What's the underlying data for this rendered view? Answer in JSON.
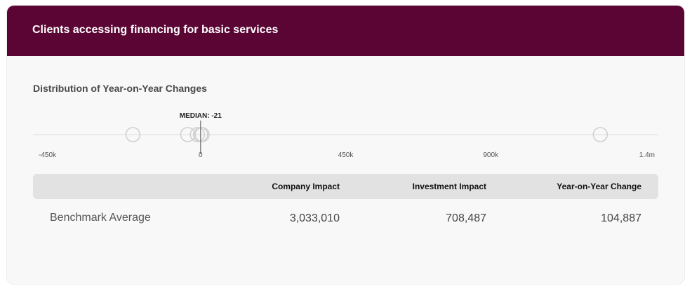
{
  "header": {
    "title": "Clients accessing financing for basic services",
    "bg_color": "#5a0533"
  },
  "distribution": {
    "title": "Distribution of Year-on-Year Changes",
    "median_label": "MEDIAN: -21",
    "median_value": -21,
    "axis_min": -520000,
    "axis_max": 1420000,
    "tick_values": [
      -450000,
      0,
      450000,
      900000,
      1400000
    ],
    "tick_labels": [
      "-450k",
      "0",
      "450k",
      "900k",
      "1.4m"
    ],
    "points": [
      -210000,
      -40000,
      -10000,
      0,
      5000,
      1240000
    ]
  },
  "table": {
    "headers": [
      "Company Impact",
      "Investment Impact",
      "Year-on-Year Change"
    ],
    "rows": [
      {
        "label": "Benchmark Average",
        "company_impact": "3,033,010",
        "investment_impact": "708,487",
        "yoy_change": "104,887"
      }
    ]
  }
}
